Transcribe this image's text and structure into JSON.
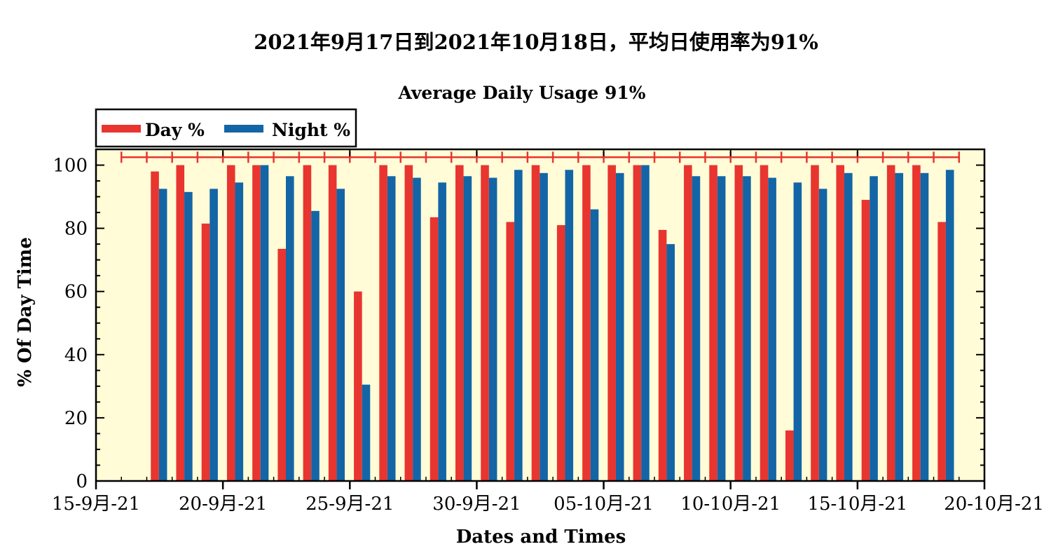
{
  "chart_data": {
    "type": "bar",
    "title": "2021年9月17日到2021年10月18日，平均日使用率为91%",
    "subtitle": "Average Daily Usage 91%",
    "xlabel": "Dates and Times",
    "ylabel": "% Of Day Time",
    "ylim": [
      0,
      105
    ],
    "yticks": [
      0,
      20,
      40,
      60,
      80,
      100
    ],
    "xlim": [
      "2021-09-15",
      "2021-10-20"
    ],
    "xticks": [
      "2021-09-15",
      "2021-09-20",
      "2021-09-25",
      "2021-09-30",
      "2021-10-05",
      "2021-10-10",
      "2021-10-15",
      "2021-10-20"
    ],
    "xtick_labels": [
      "15-9月-21",
      "20-9月-21",
      "25-9月-21",
      "30-9月-21",
      "05-10月-21",
      "10-10月-21",
      "15-10月-21",
      "20-10月-21"
    ],
    "legend_position": "top-left, above plot",
    "grid": false,
    "background_color": "#fffcd7",
    "categories": [
      "2021-09-17",
      "2021-09-18",
      "2021-09-19",
      "2021-09-20",
      "2021-09-21",
      "2021-09-22",
      "2021-09-23",
      "2021-09-24",
      "2021-09-25",
      "2021-09-26",
      "2021-09-27",
      "2021-09-28",
      "2021-09-29",
      "2021-09-30",
      "2021-10-01",
      "2021-10-02",
      "2021-10-03",
      "2021-10-04",
      "2021-10-05",
      "2021-10-06",
      "2021-10-07",
      "2021-10-08",
      "2021-10-09",
      "2021-10-10",
      "2021-10-11",
      "2021-10-12",
      "2021-10-13",
      "2021-10-14",
      "2021-10-15",
      "2021-10-16",
      "2021-10-17",
      "2021-10-18"
    ],
    "series": [
      {
        "name": "Day %",
        "color": "#e8352f",
        "values": [
          98,
          100,
          81.5,
          100,
          100,
          73.5,
          100,
          100,
          60,
          100,
          100,
          83.5,
          100,
          100,
          82,
          100,
          81,
          100,
          100,
          100,
          79.5,
          100,
          100,
          100,
          100,
          16,
          100,
          100,
          89,
          100,
          100,
          82
        ]
      },
      {
        "name": "Night %",
        "color": "#1365a6",
        "values": [
          92.5,
          91.5,
          92.5,
          94.5,
          100,
          96.5,
          85.5,
          92.5,
          30.5,
          96.5,
          96,
          94.5,
          96.5,
          96,
          98.5,
          97.5,
          98.5,
          86,
          97.5,
          100,
          75,
          96.5,
          96.5,
          96.5,
          96,
          94.5,
          92.5,
          97.5,
          96.5,
          97.5,
          97.5,
          98.5
        ]
      }
    ],
    "threshold_line": {
      "value": 102.5,
      "color": "#e8352f",
      "from": "2021-09-16",
      "to": "2021-10-19"
    }
  }
}
